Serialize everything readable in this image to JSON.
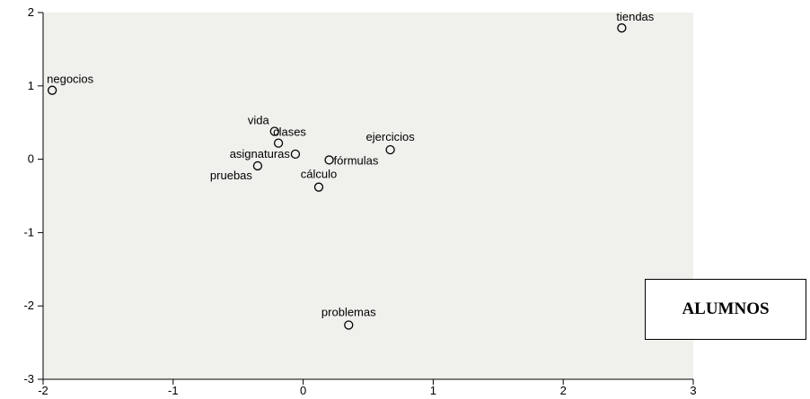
{
  "chart_data": {
    "type": "scatter",
    "xlim": [
      -2,
      3
    ],
    "ylim": [
      -3,
      2
    ],
    "x_ticks": [
      -2,
      -1,
      0,
      1,
      2,
      3
    ],
    "y_ticks": [
      2,
      1,
      0,
      -1,
      -2,
      -3
    ],
    "grid": false,
    "background": "#f0f0ec",
    "points": [
      {
        "label": "tiendas",
        "x": 2.45,
        "y": 1.79,
        "label_pos": "above-right"
      },
      {
        "label": "negocios",
        "x": -1.93,
        "y": 0.94,
        "label_pos": "above-right"
      },
      {
        "label": "vida",
        "x": -0.22,
        "y": 0.38,
        "label_pos": "above-left"
      },
      {
        "label": "clases",
        "x": -0.19,
        "y": 0.22,
        "label_pos": "above-right"
      },
      {
        "label": "ejercicios",
        "x": 0.67,
        "y": 0.13,
        "label_pos": "above-center"
      },
      {
        "label": "asignaturas",
        "x": -0.06,
        "y": 0.07,
        "label_pos": "left"
      },
      {
        "label": "fórmulas",
        "x": 0.2,
        "y": -0.01,
        "label_pos": "right"
      },
      {
        "label": "pruebas",
        "x": -0.35,
        "y": -0.09,
        "label_pos": "below-left"
      },
      {
        "label": "cálculo",
        "x": 0.12,
        "y": -0.38,
        "label_pos": "above-center"
      },
      {
        "label": "problemas",
        "x": 0.35,
        "y": -2.26,
        "label_pos": "above-center"
      }
    ]
  },
  "legend": {
    "text": "ALUMNOS"
  }
}
